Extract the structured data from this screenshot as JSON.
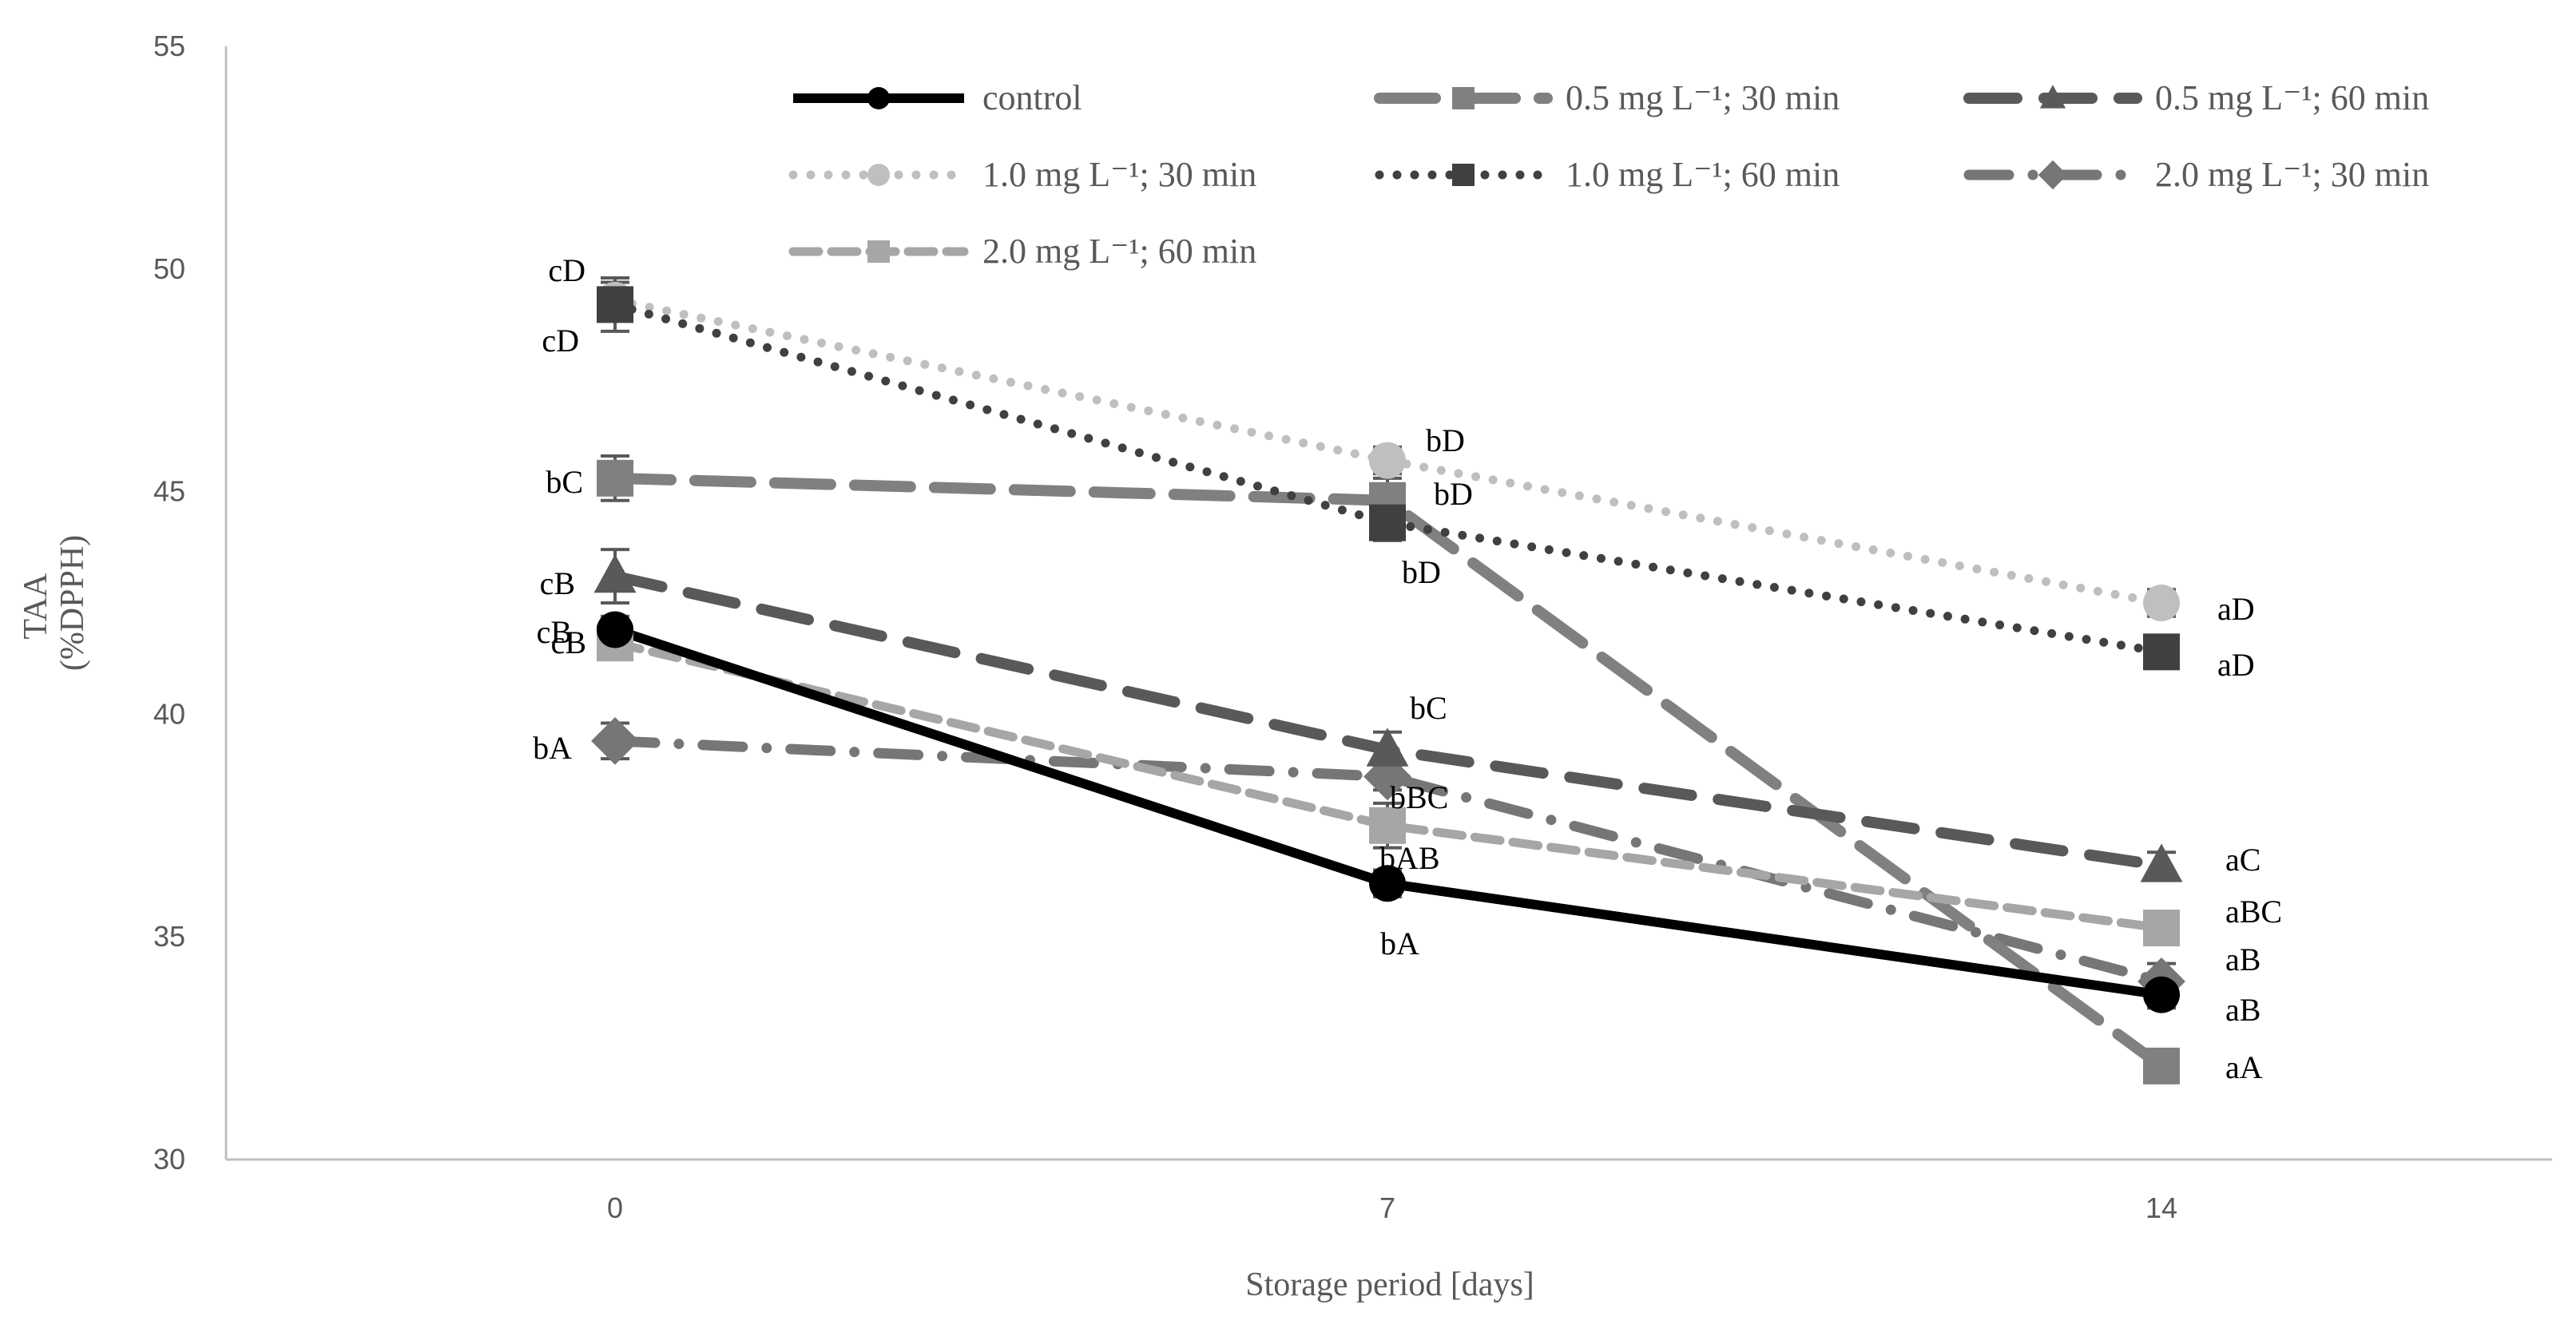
{
  "chart_data": {
    "type": "line",
    "xlabel": "Storage period [days]",
    "ylabel_lines": [
      "TAA",
      "(%DPPH)"
    ],
    "x": [
      0,
      7,
      14
    ],
    "x_tick_labels": [
      "0",
      "7",
      "14"
    ],
    "ylim": [
      30,
      55
    ],
    "y_ticks": [
      30,
      35,
      40,
      45,
      50,
      55
    ],
    "grid": false,
    "legend_position": "top",
    "series": [
      {
        "name": "control",
        "values": [
          41.9,
          36.2,
          33.7
        ],
        "errors": [
          0.3,
          0.3,
          0.3
        ],
        "color": "#000000",
        "dash": "solid",
        "marker": "circle",
        "labels": [
          "cB",
          "bA",
          "aB"
        ]
      },
      {
        "name": "0.5 mg L⁻¹; 30 min",
        "values": [
          45.3,
          44.8,
          32.1
        ],
        "errors": [
          0.5,
          0.5,
          0.3
        ],
        "color": "#808080",
        "dash": "longdash",
        "marker": "square",
        "labels": [
          "bC",
          "bD",
          "aA"
        ]
      },
      {
        "name": "0.5 mg L⁻¹; 60 min",
        "values": [
          43.1,
          39.2,
          36.6
        ],
        "errors": [
          0.6,
          0.4,
          0.3
        ],
        "color": "#595959",
        "dash": "dash",
        "marker": "triangle",
        "labels": [
          "cB",
          "bC",
          "aC"
        ]
      },
      {
        "name": "1.0 mg L⁻¹; 30 min",
        "values": [
          49.3,
          45.7,
          42.5
        ],
        "errors": [
          0.4,
          0.3,
          0.3
        ],
        "color": "#bfbfbf",
        "dash": "dot",
        "marker": "circle",
        "labels": [
          "cD",
          "bD",
          "aD"
        ]
      },
      {
        "name": "1.0 mg L⁻¹; 60 min",
        "values": [
          49.2,
          44.3,
          41.4
        ],
        "errors": [
          0.6,
          0.4,
          0.3
        ],
        "color": "#404040",
        "dash": "dot",
        "marker": "square",
        "labels": [
          "cD",
          "bD",
          "aD"
        ]
      },
      {
        "name": "2.0 mg L⁻¹; 30 min",
        "values": [
          39.4,
          38.6,
          34.0
        ],
        "errors": [
          0.4,
          0.3,
          0.4
        ],
        "color": "#767676",
        "dash": "dashdot",
        "marker": "diamond",
        "labels": [
          "bA",
          "bAB",
          "aB"
        ]
      },
      {
        "name": "2.0 mg L⁻¹; 60 min",
        "values": [
          41.6,
          37.5,
          35.2
        ],
        "errors": [
          0.3,
          0.5,
          0.3
        ],
        "color": "#a6a6a6",
        "dash": "shortdash",
        "marker": "square",
        "labels": [
          "cB",
          "bBC",
          "aBC"
        ]
      }
    ]
  }
}
